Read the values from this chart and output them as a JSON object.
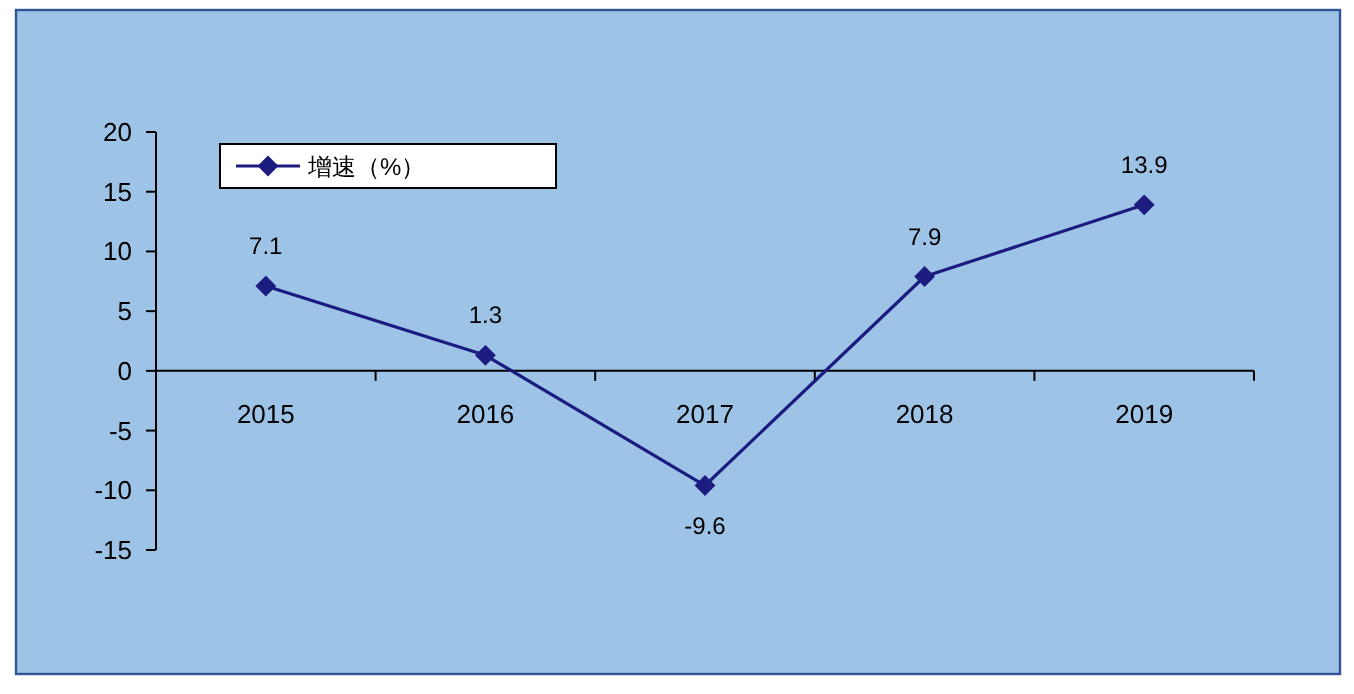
{
  "chart_data": {
    "type": "line",
    "categories": [
      "2015",
      "2016",
      "2017",
      "2018",
      "2019"
    ],
    "series": [
      {
        "name": "增速（%）",
        "color": "#1c1c80",
        "values": [
          7.1,
          1.3,
          -9.6,
          7.9,
          13.9
        ]
      }
    ],
    "ylim": [
      -15,
      20
    ],
    "yticks": [
      -15,
      -10,
      -5,
      0,
      5,
      10,
      15,
      20
    ],
    "data_labels": true,
    "legend": "top left",
    "marker": "diamond"
  }
}
